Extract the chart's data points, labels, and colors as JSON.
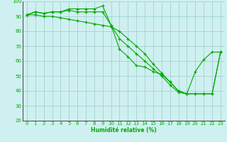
{
  "xlabel": "Humidité relative (%)",
  "background_color": "#cff0f0",
  "grid_color": "#99cccc",
  "line_color": "#00aa00",
  "xlim": [
    -0.5,
    23.5
  ],
  "ylim": [
    20,
    100
  ],
  "yticks": [
    20,
    30,
    40,
    50,
    60,
    70,
    80,
    90,
    100
  ],
  "xticks": [
    0,
    1,
    2,
    3,
    4,
    5,
    6,
    7,
    8,
    9,
    10,
    11,
    12,
    13,
    14,
    15,
    16,
    17,
    18,
    19,
    20,
    21,
    22,
    23
  ],
  "line1": [
    91,
    93,
    92,
    93,
    93,
    95,
    95,
    95,
    95,
    97,
    84,
    68,
    63,
    57,
    56,
    53,
    51,
    46,
    40,
    38,
    53,
    61,
    66,
    66
  ],
  "line2": [
    91,
    93,
    92,
    93,
    93,
    94,
    93,
    93,
    93,
    93,
    84,
    75,
    70,
    65,
    60,
    55,
    50,
    44,
    39,
    38,
    38,
    38,
    38,
    66
  ],
  "line3": [
    91,
    91,
    90,
    90,
    89,
    88,
    87,
    86,
    85,
    84,
    83,
    80,
    75,
    70,
    65,
    58,
    52,
    46,
    40,
    38,
    38,
    38,
    38,
    66
  ]
}
